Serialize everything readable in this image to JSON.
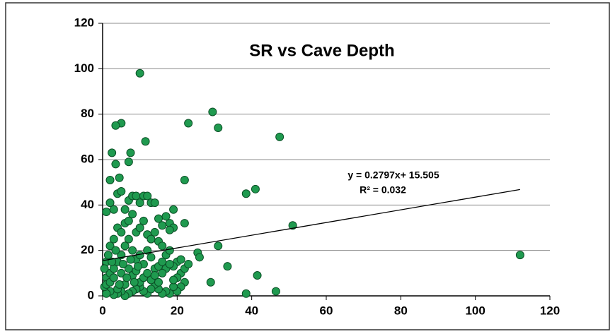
{
  "chart_data": {
    "type": "scatter",
    "title": "SR vs Cave Depth",
    "xlim": [
      0,
      120
    ],
    "xticks": [
      0,
      20,
      40,
      60,
      80,
      100,
      120
    ],
    "ylim": [
      0,
      120
    ],
    "yticks": [
      0,
      20,
      40,
      60,
      80,
      100,
      120
    ],
    "grid": true,
    "series": [
      {
        "color": "#1f9a4f",
        "x": [
          10,
          29.5,
          31,
          23,
          47.5,
          5,
          3.5,
          11.5,
          7.5,
          2.5,
          7,
          3.5,
          22,
          2,
          4.5,
          41,
          38.5,
          51,
          112,
          31,
          25.5,
          26,
          33.5,
          29,
          41.5,
          38.5,
          46.5,
          1,
          2,
          3,
          4,
          5,
          6,
          7,
          8,
          9,
          10,
          11,
          12,
          13,
          14,
          15,
          16,
          17,
          18,
          19,
          19,
          18,
          20,
          21,
          22,
          21,
          22,
          23,
          22,
          21,
          20,
          19,
          18,
          17,
          16,
          15,
          14,
          13,
          12,
          11,
          10,
          9,
          8,
          7,
          6,
          5,
          4,
          3,
          2,
          1,
          0.5,
          1,
          2,
          3,
          4,
          5,
          6,
          7,
          8,
          9,
          10,
          11,
          12,
          13,
          14,
          15,
          16,
          17,
          18,
          19,
          20,
          1,
          2,
          3,
          4,
          5,
          6,
          7,
          8,
          9,
          10,
          11,
          12,
          13,
          14,
          15,
          16,
          17,
          18,
          19,
          1,
          2,
          3,
          4,
          5,
          6,
          7,
          8,
          9,
          10,
          11,
          12,
          13,
          14,
          15,
          16,
          0.5,
          1.5,
          2.5,
          3.5,
          4.5,
          5.5,
          6.5,
          7.5,
          8.5,
          9.5
        ],
        "y": [
          98,
          81,
          74,
          76,
          70,
          76,
          75,
          68,
          63,
          63,
          59,
          58,
          51,
          51,
          52,
          47,
          45,
          31,
          18,
          22,
          19,
          17,
          13,
          6,
          9,
          1,
          2,
          37,
          41,
          38,
          45,
          46,
          38,
          42,
          44,
          44,
          41,
          44,
          44,
          41,
          41,
          34,
          31,
          35,
          32,
          38,
          30,
          29,
          15,
          16,
          32,
          10,
          12,
          14,
          6,
          4,
          2,
          4,
          1,
          2,
          1,
          3,
          5,
          7,
          1,
          2,
          4,
          3,
          2,
          1,
          0,
          2,
          1,
          0.5,
          2,
          1,
          4,
          8,
          10,
          12,
          15,
          18,
          22,
          25,
          20,
          16,
          18,
          14,
          20,
          17,
          12,
          13,
          15,
          18,
          20,
          13,
          8,
          15,
          22,
          25,
          30,
          28,
          32,
          33,
          36,
          28,
          30,
          33,
          27,
          25,
          28,
          24,
          22,
          12,
          14,
          7,
          5,
          6,
          8,
          3,
          10,
          5,
          12,
          9,
          11,
          6,
          8,
          10,
          3,
          9,
          6,
          10,
          12,
          18,
          15,
          20,
          5,
          14,
          8,
          16,
          6,
          13
        ]
      }
    ],
    "trendline": {
      "slope": 0.2797,
      "intercept": 15.505,
      "xrange": [
        0,
        112
      ]
    },
    "annotations": [
      "y = 0.2797x+ 15.505",
      "R² = 0.032"
    ]
  }
}
